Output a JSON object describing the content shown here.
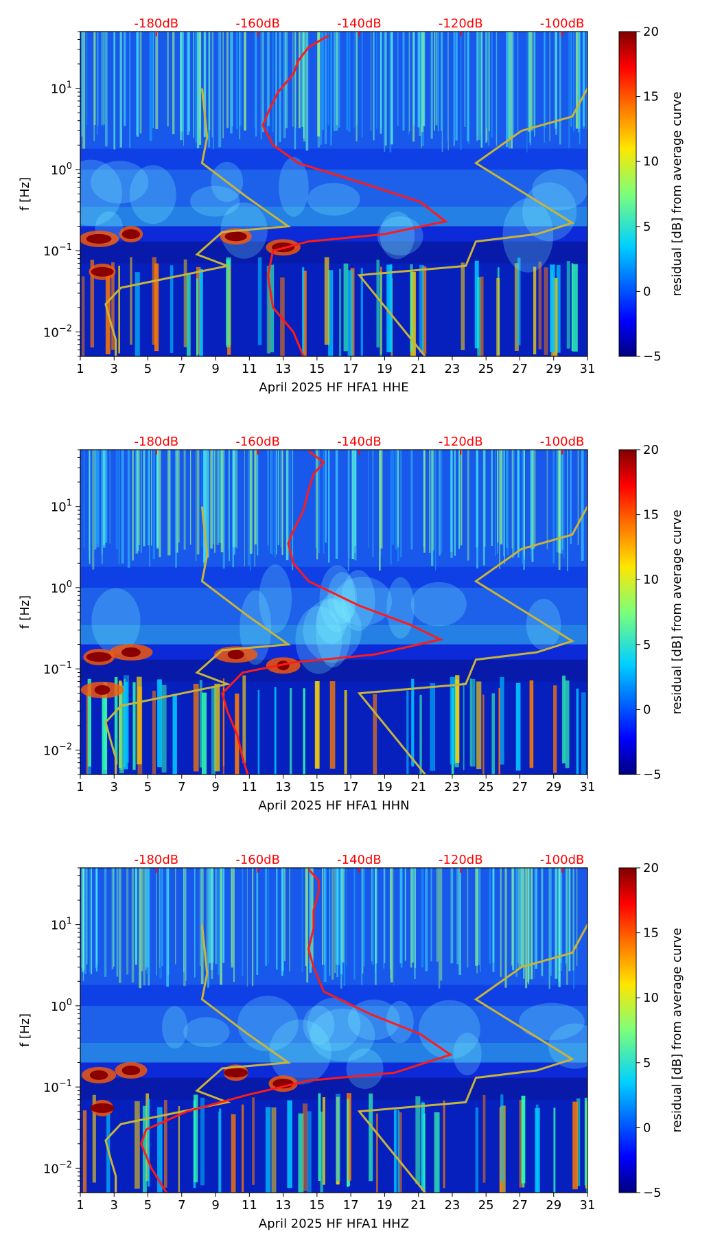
{
  "colors": {
    "ppsd_curve": "#ff1a1a",
    "noise_model": "#c8b43a",
    "top_axis_text": "#ff0000",
    "colormap": [
      "#00007f",
      "#0000ff",
      "#00b4ff",
      "#2cffca",
      "#bfff3c",
      "#ffd600",
      "#ff4a00",
      "#7f0000"
    ]
  },
  "chart_data": [
    {
      "type": "heatmap",
      "channel": "HHE",
      "xlabel": "April 2025 HF HFA1  HHE",
      "ylabel": "f [Hz]",
      "colorbar_label": "residual [dB] from average curve",
      "x_ticks": [
        "1",
        "3",
        "5",
        "7",
        "9",
        "11",
        "13",
        "15",
        "17",
        "19",
        "21",
        "23",
        "25",
        "27",
        "29",
        "31"
      ],
      "x_range": [
        1,
        31
      ],
      "y_range_hz": [
        0.005,
        50
      ],
      "y_ticks": [
        {
          "value": 10,
          "base": "10",
          "exp": "1"
        },
        {
          "value": 1,
          "base": "10",
          "exp": "0"
        },
        {
          "value": 0.1,
          "base": "10",
          "exp": "−1"
        },
        {
          "value": 0.01,
          "base": "10",
          "exp": "−2"
        }
      ],
      "top_axis_labels": [
        "-180dB",
        "-160dB",
        "-140dB",
        "-120dB",
        "-100dB"
      ],
      "top_axis_range_db": [
        -195,
        -95
      ],
      "colorbar_ticks": [
        "20",
        "15",
        "10",
        "5",
        "0",
        "−5"
      ],
      "colorbar_range": [
        -5,
        20
      ],
      "ppsd_curve_db": [
        [
          -146,
          45
        ],
        [
          -150,
          32
        ],
        [
          -152,
          22
        ],
        [
          -153,
          15
        ],
        [
          -156,
          9
        ],
        [
          -158,
          5
        ],
        [
          -159,
          3.5
        ],
        [
          -157,
          2
        ],
        [
          -152,
          1.2
        ],
        [
          -140,
          0.7
        ],
        [
          -128,
          0.4
        ],
        [
          -123,
          0.23
        ],
        [
          -135,
          0.16
        ],
        [
          -150,
          0.13
        ],
        [
          -157,
          0.1
        ],
        [
          -158,
          0.05
        ],
        [
          -157,
          0.02
        ],
        [
          -153,
          0.01
        ],
        [
          -151,
          0.005
        ]
      ],
      "noise_model_curves_db": [
        [
          [
            -171,
            10
          ],
          [
            -170,
            2.5
          ],
          [
            -171,
            1.2
          ],
          [
            -162,
            0.45
          ],
          [
            -154,
            0.2
          ],
          [
            -167,
            0.17
          ],
          [
            -172,
            0.09
          ],
          [
            -166,
            0.065
          ],
          [
            -187,
            0.035
          ],
          [
            -190,
            0.022
          ],
          [
            -189,
            0.013
          ],
          [
            -188,
            0.008
          ],
          [
            -188,
            0.005
          ]
        ],
        [
          [
            -95,
            10
          ],
          [
            -98,
            4.5
          ],
          [
            -108,
            3
          ],
          [
            -117,
            1.2
          ],
          [
            -98,
            0.22
          ],
          [
            -105,
            0.16
          ],
          [
            -117,
            0.13
          ],
          [
            -119,
            0.065
          ],
          [
            -140,
            0.05
          ],
          [
            -127,
            0.005
          ]
        ]
      ]
    },
    {
      "type": "heatmap",
      "channel": "HHN",
      "xlabel": "April 2025 HF HFA1  HHN",
      "ylabel": "f [Hz]",
      "colorbar_label": "residual [dB] from average curve",
      "x_ticks": [
        "1",
        "3",
        "5",
        "7",
        "9",
        "11",
        "13",
        "15",
        "17",
        "19",
        "21",
        "23",
        "25",
        "27",
        "29",
        "31"
      ],
      "x_range": [
        1,
        31
      ],
      "y_range_hz": [
        0.005,
        50
      ],
      "y_ticks": [
        {
          "value": 10,
          "base": "10",
          "exp": "1"
        },
        {
          "value": 1,
          "base": "10",
          "exp": "0"
        },
        {
          "value": 0.1,
          "base": "10",
          "exp": "−1"
        },
        {
          "value": 0.01,
          "base": "10",
          "exp": "−2"
        }
      ],
      "top_axis_labels": [
        "-180dB",
        "-160dB",
        "-140dB",
        "-120dB",
        "-100dB"
      ],
      "top_axis_range_db": [
        -195,
        -95
      ],
      "colorbar_ticks": [
        "20",
        "15",
        "10",
        "5",
        "0",
        "−5"
      ],
      "colorbar_range": [
        -5,
        20
      ],
      "ppsd_curve_db": [
        [
          -150,
          48
        ],
        [
          -147,
          35
        ],
        [
          -149,
          25
        ],
        [
          -150,
          16
        ],
        [
          -151,
          9
        ],
        [
          -153,
          5
        ],
        [
          -154,
          3.5
        ],
        [
          -153,
          2
        ],
        [
          -150,
          1.2
        ],
        [
          -140,
          0.6
        ],
        [
          -130,
          0.35
        ],
        [
          -124,
          0.23
        ],
        [
          -137,
          0.15
        ],
        [
          -153,
          0.12
        ],
        [
          -163,
          0.09
        ],
        [
          -167,
          0.05
        ],
        [
          -166,
          0.03
        ],
        [
          -164,
          0.015
        ],
        [
          -163,
          0.008
        ],
        [
          -162,
          0.005
        ]
      ],
      "noise_model_curves_db": [
        [
          [
            -171,
            10
          ],
          [
            -170,
            2.5
          ],
          [
            -171,
            1.2
          ],
          [
            -162,
            0.45
          ],
          [
            -154,
            0.2
          ],
          [
            -167,
            0.17
          ],
          [
            -172,
            0.09
          ],
          [
            -166,
            0.065
          ],
          [
            -187,
            0.035
          ],
          [
            -190,
            0.022
          ],
          [
            -189,
            0.013
          ],
          [
            -188,
            0.008
          ],
          [
            -188,
            0.005
          ]
        ],
        [
          [
            -95,
            10
          ],
          [
            -98,
            4.5
          ],
          [
            -108,
            3
          ],
          [
            -117,
            1.2
          ],
          [
            -98,
            0.22
          ],
          [
            -105,
            0.16
          ],
          [
            -117,
            0.13
          ],
          [
            -119,
            0.065
          ],
          [
            -140,
            0.05
          ],
          [
            -127,
            0.005
          ]
        ]
      ]
    },
    {
      "type": "heatmap",
      "channel": "HHZ",
      "xlabel": "April 2025 HF HFA1  HHZ",
      "ylabel": "f [Hz]",
      "colorbar_label": "residual [dB] from average curve",
      "x_ticks": [
        "1",
        "3",
        "5",
        "7",
        "9",
        "11",
        "13",
        "15",
        "17",
        "19",
        "21",
        "23",
        "25",
        "27",
        "29",
        "31"
      ],
      "x_range": [
        1,
        31
      ],
      "y_range_hz": [
        0.005,
        50
      ],
      "y_ticks": [
        {
          "value": 10,
          "base": "10",
          "exp": "1"
        },
        {
          "value": 1,
          "base": "10",
          "exp": "0"
        },
        {
          "value": 0.1,
          "base": "10",
          "exp": "−1"
        },
        {
          "value": 0.01,
          "base": "10",
          "exp": "−2"
        }
      ],
      "top_axis_labels": [
        "-180dB",
        "-160dB",
        "-140dB",
        "-120dB",
        "-100dB"
      ],
      "top_axis_range_db": [
        -195,
        -95
      ],
      "colorbar_ticks": [
        "20",
        "15",
        "10",
        "5",
        "0",
        "−5"
      ],
      "colorbar_range": [
        -5,
        20
      ],
      "ppsd_curve_db": [
        [
          -150,
          48
        ],
        [
          -148,
          35
        ],
        [
          -148,
          25
        ],
        [
          -149,
          15
        ],
        [
          -149,
          9
        ],
        [
          -150,
          5
        ],
        [
          -149,
          3
        ],
        [
          -147,
          1.5
        ],
        [
          -138,
          0.8
        ],
        [
          -128,
          0.45
        ],
        [
          -122,
          0.25
        ],
        [
          -133,
          0.15
        ],
        [
          -150,
          0.12
        ],
        [
          -162,
          0.08
        ],
        [
          -174,
          0.05
        ],
        [
          -182,
          0.03
        ],
        [
          -183,
          0.02
        ],
        [
          -181,
          0.01
        ],
        [
          -178,
          0.005
        ]
      ],
      "noise_model_curves_db": [
        [
          [
            -171,
            10
          ],
          [
            -170,
            2.5
          ],
          [
            -171,
            1.2
          ],
          [
            -162,
            0.45
          ],
          [
            -154,
            0.2
          ],
          [
            -167,
            0.17
          ],
          [
            -172,
            0.09
          ],
          [
            -166,
            0.065
          ],
          [
            -187,
            0.035
          ],
          [
            -190,
            0.022
          ],
          [
            -189,
            0.013
          ],
          [
            -188,
            0.008
          ],
          [
            -188,
            0.005
          ]
        ],
        [
          [
            -95,
            10
          ],
          [
            -98,
            4.5
          ],
          [
            -108,
            3
          ],
          [
            -117,
            1.2
          ],
          [
            -98,
            0.22
          ],
          [
            -105,
            0.16
          ],
          [
            -117,
            0.13
          ],
          [
            -119,
            0.065
          ],
          [
            -140,
            0.05
          ],
          [
            -127,
            0.005
          ]
        ]
      ]
    }
  ]
}
